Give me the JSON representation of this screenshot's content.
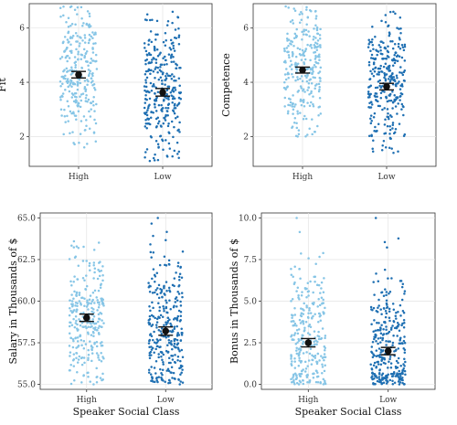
{
  "colors": {
    "High": "#86c5e6",
    "Low": "#1e6fb2",
    "mean": "#111111"
  },
  "chart_data": [
    {
      "type": "scatter",
      "subtype": "jitter-strip with mean and error bars",
      "ylabel": "Fit",
      "xlabel": "",
      "categories": [
        "High",
        "Low"
      ],
      "ylim": [
        0.9,
        6.9
      ],
      "yticks": [
        "2",
        "4",
        "6"
      ],
      "ytick_values": [
        2,
        4,
        6
      ],
      "grid": true,
      "series": [
        {
          "name": "High",
          "mean": 4.28,
          "error": [
            4.16,
            4.4
          ],
          "range": [
            1.6,
            6.8
          ],
          "n": 280
        },
        {
          "name": "Low",
          "mean": 3.63,
          "error": [
            3.49,
            3.77
          ],
          "range": [
            1.1,
            6.6
          ],
          "n": 300
        }
      ]
    },
    {
      "type": "scatter",
      "subtype": "jitter-strip with mean and error bars",
      "ylabel": "Competence",
      "xlabel": "",
      "categories": [
        "High",
        "Low"
      ],
      "ylim": [
        0.9,
        6.9
      ],
      "yticks": [
        "2",
        "4",
        "6"
      ],
      "ytick_values": [
        2,
        4,
        6
      ],
      "grid": true,
      "series": [
        {
          "name": "High",
          "mean": 4.45,
          "error": [
            4.34,
            4.56
          ],
          "range": [
            2.0,
            6.8
          ],
          "n": 280
        },
        {
          "name": "Low",
          "mean": 3.84,
          "error": [
            3.72,
            3.96
          ],
          "range": [
            1.4,
            6.6
          ],
          "n": 300
        }
      ]
    },
    {
      "type": "scatter",
      "subtype": "jitter-strip with mean and error bars",
      "ylabel": "Salary in Thousands of $",
      "xlabel": "Speaker Social Class",
      "categories": [
        "High",
        "Low"
      ],
      "ylim": [
        54.7,
        65.3
      ],
      "yticks": [
        "55.0",
        "57.5",
        "60.0",
        "62.5",
        "65.0"
      ],
      "ytick_values": [
        55,
        57.5,
        60,
        62.5,
        65
      ],
      "grid": true,
      "series": [
        {
          "name": "High",
          "mean": 59.0,
          "error": [
            58.78,
            59.22
          ],
          "range": [
            55.0,
            63.6
          ],
          "n": 280
        },
        {
          "name": "Low",
          "mean": 58.2,
          "error": [
            57.95,
            58.45
          ],
          "range": [
            55.0,
            65.0
          ],
          "n": 300
        }
      ]
    },
    {
      "type": "scatter",
      "subtype": "jitter-strip with mean and error bars",
      "ylabel": "Bonus in Thousands of $",
      "xlabel": "Speaker Social Class",
      "categories": [
        "High",
        "Low"
      ],
      "ylim": [
        -0.3,
        10.3
      ],
      "yticks": [
        "0.0",
        "2.5",
        "5.0",
        "7.5",
        "10.0"
      ],
      "ytick_values": [
        0,
        2.5,
        5,
        7.5,
        10
      ],
      "grid": true,
      "series": [
        {
          "name": "High",
          "mean": 2.5,
          "error": [
            2.25,
            2.75
          ],
          "range": [
            0.0,
            10.0
          ],
          "n": 280
        },
        {
          "name": "Low",
          "mean": 2.0,
          "error": [
            1.78,
            2.22
          ],
          "range": [
            0.0,
            10.0
          ],
          "n": 300
        }
      ]
    }
  ]
}
